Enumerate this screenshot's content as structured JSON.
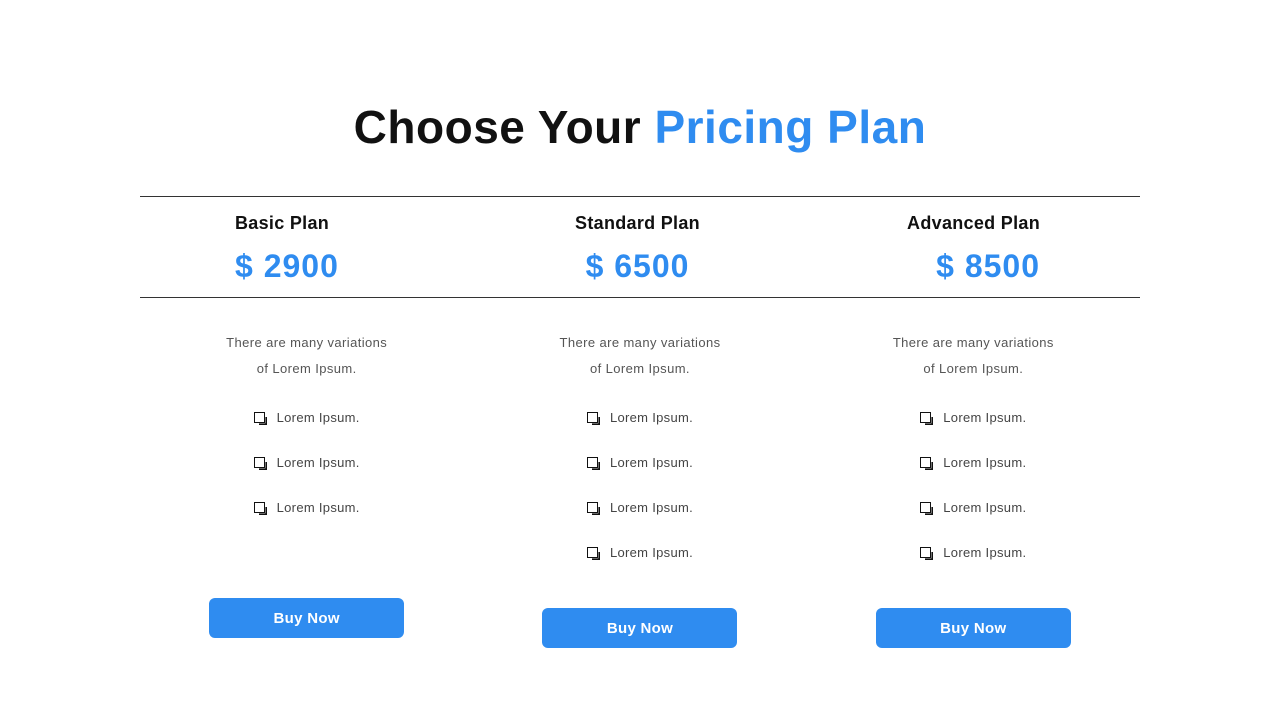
{
  "heading": {
    "part1": "Choose Your ",
    "part2": "Pricing Plan"
  },
  "colors": {
    "accent": "#2f8cf0",
    "text_primary": "#111111",
    "text_secondary": "#555555",
    "background": "#ffffff",
    "border": "#333333"
  },
  "typography": {
    "heading_fontsize": 46,
    "heading_weight": 900,
    "plan_name_fontsize": 18,
    "plan_name_weight": 900,
    "price_fontsize": 32,
    "price_weight": 900,
    "desc_fontsize": 13,
    "feature_fontsize": 13,
    "button_fontsize": 15
  },
  "layout": {
    "container_width": 1000,
    "button_width": 195,
    "button_height": 40,
    "button_radius": 6,
    "columns": 3
  },
  "plans": [
    {
      "name": "Basic Plan",
      "price": "$ 2900",
      "description_line1": "There are many variations",
      "description_line2": "of Lorem Ipsum.",
      "features": [
        "Lorem Ipsum.",
        "Lorem Ipsum.",
        "Lorem Ipsum."
      ],
      "button_label": "Buy Now"
    },
    {
      "name": "Standard Plan",
      "price": "$ 6500",
      "description_line1": "There are many variations",
      "description_line2": "of Lorem Ipsum.",
      "features": [
        "Lorem Ipsum.",
        "Lorem Ipsum.",
        "Lorem Ipsum.",
        "Lorem Ipsum."
      ],
      "button_label": "Buy Now"
    },
    {
      "name": "Advanced Plan",
      "price": "$ 8500",
      "description_line1": "There are many variations",
      "description_line2": "of Lorem Ipsum.",
      "features": [
        "Lorem Ipsum.",
        "Lorem Ipsum.",
        "Lorem Ipsum.",
        "Lorem Ipsum."
      ],
      "button_label": "Buy Now"
    }
  ]
}
